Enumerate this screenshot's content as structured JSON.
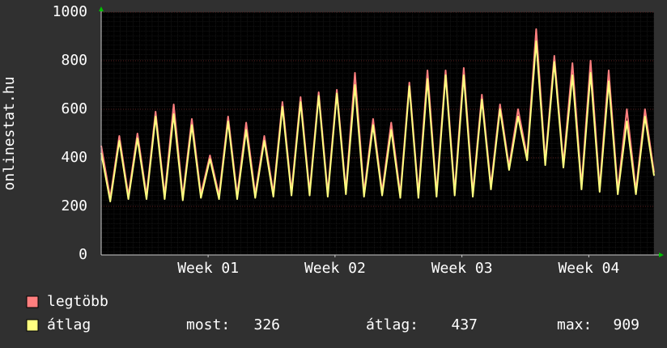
{
  "chart_data": {
    "type": "line",
    "ylabel": "onlinestat.hu",
    "x": [
      0,
      0.5,
      1,
      1.5,
      2,
      2.5,
      3,
      3.5,
      4,
      4.5,
      5,
      5.5,
      6,
      6.5,
      7,
      7.5,
      8,
      8.5,
      9,
      9.5,
      10,
      10.5,
      11,
      11.5,
      12,
      12.5,
      13,
      13.5,
      14,
      14.5,
      15,
      15.5,
      16,
      16.5,
      17,
      17.5,
      18,
      18.5,
      19,
      19.5,
      20,
      20.5,
      21,
      21.5,
      22,
      22.5,
      23,
      23.5,
      24,
      24.5,
      25,
      25.5,
      26,
      26.5,
      27,
      27.5,
      28,
      28.5,
      29,
      29.5,
      30,
      30.5
    ],
    "series": [
      {
        "name": "legtöbb",
        "color": "#ff7f7f",
        "values": [
          450,
          235,
          490,
          245,
          500,
          245,
          590,
          245,
          620,
          240,
          560,
          250,
          410,
          245,
          570,
          245,
          545,
          250,
          490,
          255,
          630,
          260,
          650,
          260,
          670,
          255,
          680,
          265,
          750,
          255,
          560,
          260,
          545,
          250,
          710,
          250,
          760,
          255,
          760,
          260,
          770,
          255,
          660,
          285,
          620,
          365,
          600,
          405,
          930,
          385,
          820,
          375,
          790,
          285,
          800,
          275,
          760,
          265,
          600,
          265,
          600,
          340
        ]
      },
      {
        "name": "átlag",
        "color": "#ffff80",
        "values": [
          420,
          220,
          470,
          230,
          480,
          230,
          570,
          230,
          580,
          225,
          535,
          235,
          395,
          230,
          550,
          230,
          515,
          235,
          470,
          240,
          610,
          245,
          630,
          245,
          655,
          240,
          665,
          250,
          700,
          240,
          535,
          245,
          515,
          235,
          695,
          235,
          725,
          240,
          740,
          245,
          740,
          240,
          640,
          270,
          600,
          350,
          570,
          390,
          880,
          370,
          795,
          360,
          740,
          270,
          750,
          260,
          715,
          250,
          550,
          250,
          570,
          326
        ]
      }
    ],
    "xlim": [
      0,
      30.5
    ],
    "xticks": [
      {
        "value": 5.9,
        "label": "Week 01"
      },
      {
        "value": 12.9,
        "label": "Week 02"
      },
      {
        "value": 19.9,
        "label": "Week 03"
      },
      {
        "value": 26.9,
        "label": "Week 04"
      }
    ],
    "ylim": [
      0,
      1000
    ],
    "yticks": [
      0,
      200,
      400,
      600,
      800,
      1000
    ],
    "grid": true,
    "stats": [
      {
        "label": "most:",
        "value": 326
      },
      {
        "label": "átlag:",
        "value": 437
      },
      {
        "label": "max:",
        "value": 909
      }
    ]
  }
}
